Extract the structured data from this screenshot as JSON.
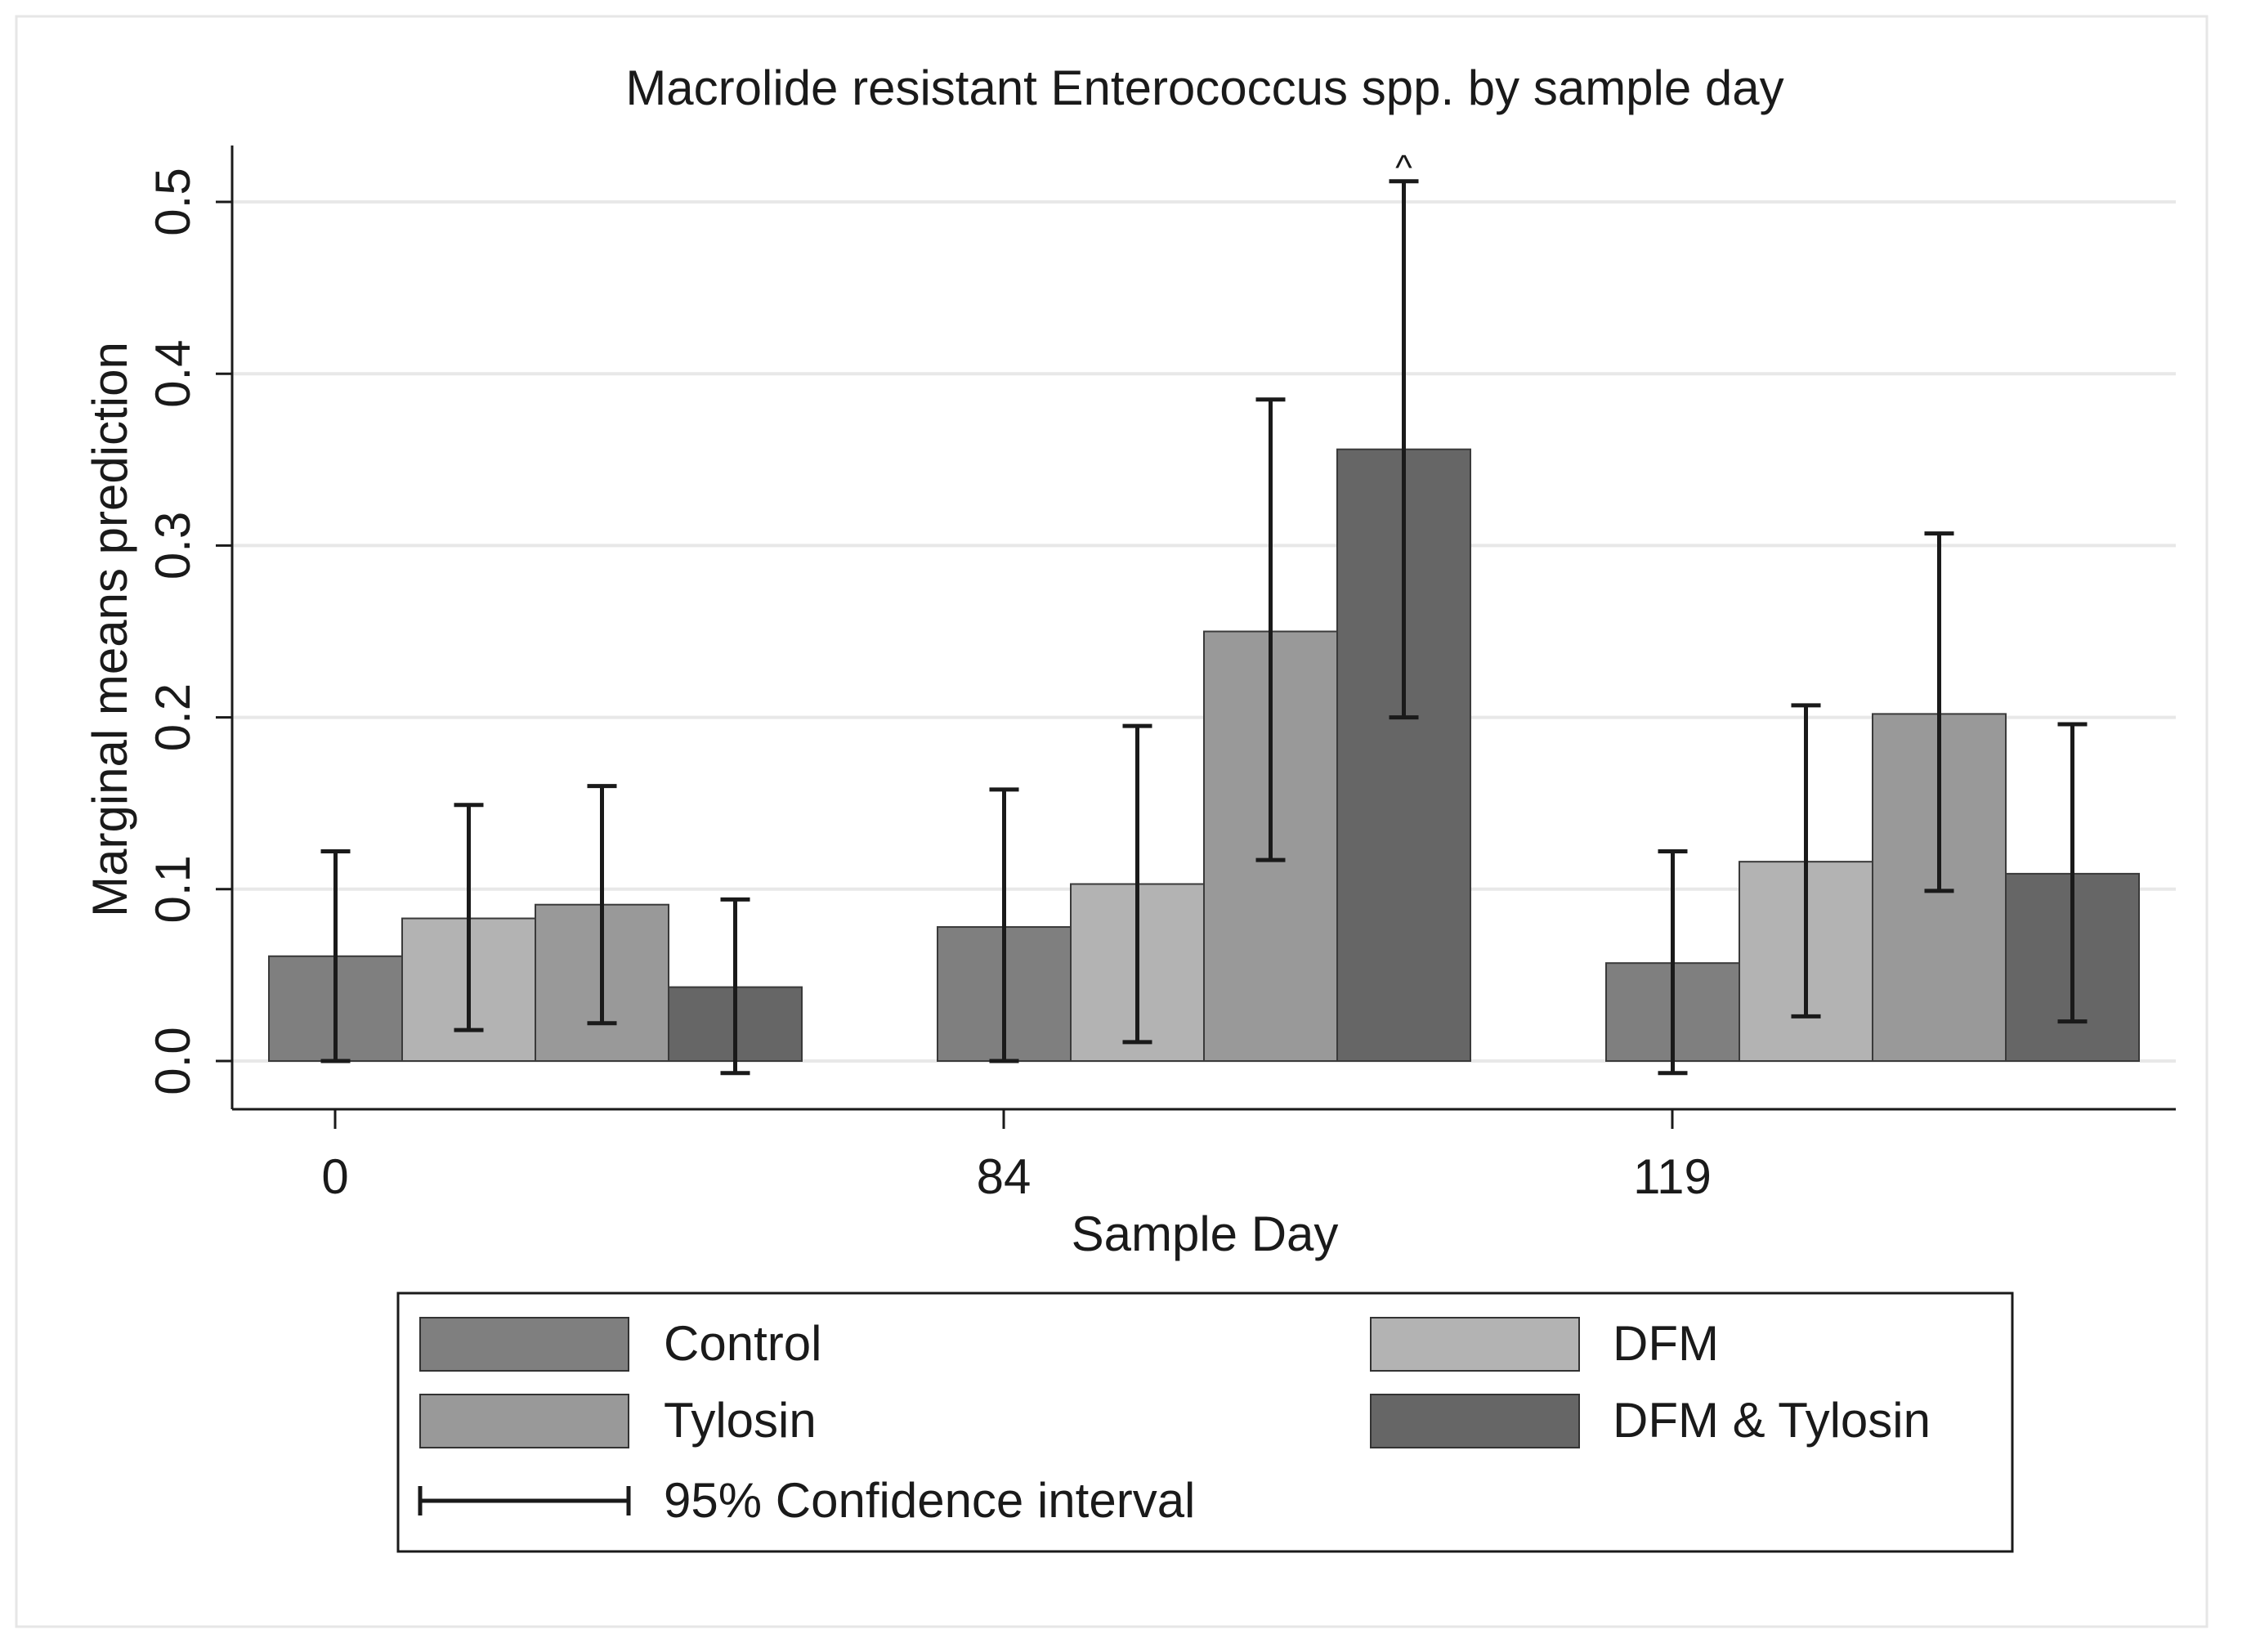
{
  "chart_data": {
    "type": "bar",
    "title": "Macrolide resistant Enterococcus spp. by sample day",
    "xlabel": "Sample Day",
    "ylabel": "Marginal means prediction",
    "categories": [
      "0",
      "84",
      "119"
    ],
    "ylim": [
      0,
      0.5
    ],
    "yticks": [
      "0.0",
      "0.1",
      "0.2",
      "0.3",
      "0.4",
      "0.5"
    ],
    "grid": true,
    "legend_position": "bottom",
    "ci_label": "95% Confidence interval",
    "annotations": [
      {
        "text": "^",
        "category": "84",
        "series": "DFM & Tylosin"
      }
    ],
    "series": [
      {
        "name": "Control",
        "color": "#7f7f7f",
        "values": [
          0.061,
          0.078,
          0.057
        ],
        "ci_low": [
          0.0,
          0.0,
          -0.007
        ],
        "ci_high": [
          0.122,
          0.158,
          0.122
        ]
      },
      {
        "name": "DFM",
        "color": "#b3b3b3",
        "values": [
          0.083,
          0.103,
          0.116
        ],
        "ci_low": [
          0.018,
          0.011,
          0.026
        ],
        "ci_high": [
          0.149,
          0.195,
          0.207
        ]
      },
      {
        "name": "Tylosin",
        "color": "#999999",
        "values": [
          0.091,
          0.25,
          0.202
        ],
        "ci_low": [
          0.022,
          0.117,
          0.099
        ],
        "ci_high": [
          0.16,
          0.385,
          0.307
        ]
      },
      {
        "name": "DFM & Tylosin",
        "color": "#666666",
        "values": [
          0.043,
          0.356,
          0.109
        ],
        "ci_low": [
          -0.007,
          0.2,
          0.023
        ],
        "ci_high": [
          0.094,
          0.512,
          0.196
        ]
      }
    ]
  }
}
